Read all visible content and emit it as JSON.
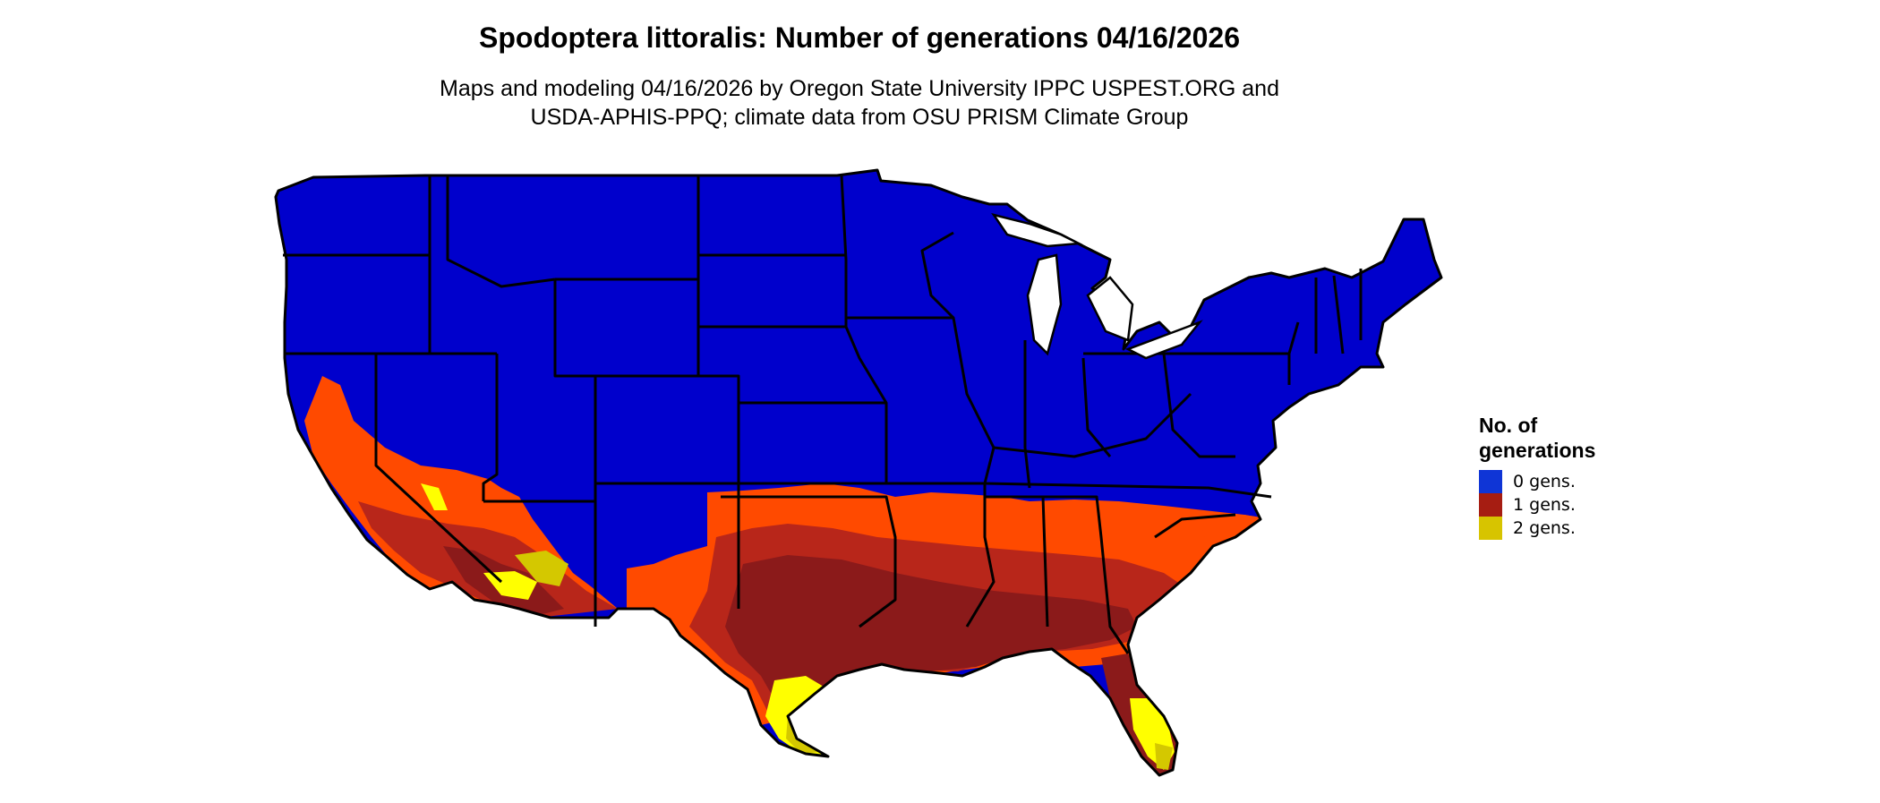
{
  "header": {
    "title": "Spodoptera littoralis: Number of generations 04/16/2026",
    "subtitle_line1": "Maps and modeling 04/16/2026 by Oregon State University IPPC USPEST.ORG and",
    "subtitle_line2": "USDA-APHIS-PPQ; climate data from OSU PRISM Climate Group"
  },
  "map": {
    "region": "contiguous United States",
    "colors": {
      "gen0": "#0000cc",
      "gen1_dark": "#8b1a1a",
      "gen1_mid": "#b8261a",
      "gen1_light": "#ff4a00",
      "gen2": "#ffff00",
      "gen2_dark": "#d4c800",
      "border": "#000000"
    }
  },
  "legend": {
    "title_line1": "No. of",
    "title_line2": "generations",
    "items": [
      {
        "label": "0 gens.",
        "color": "#0f35d6"
      },
      {
        "label": "1 gens.",
        "color": "#a61d12"
      },
      {
        "label": "2 gens.",
        "color": "#d7c400"
      }
    ]
  }
}
